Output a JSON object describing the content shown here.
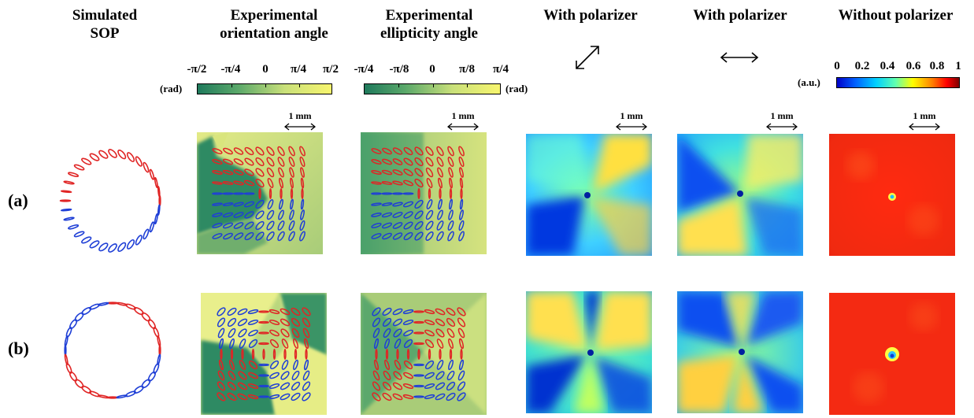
{
  "headers": {
    "col1": "Simulated\nSOP",
    "col2": "Experimental\norientation angle",
    "col3": "Experimental\nellipticity angle",
    "col4": "With polarizer",
    "col5": "With polarizer",
    "col6": "Without polarizer"
  },
  "row_labels": [
    "(a)",
    "(b)"
  ],
  "colorbars": {
    "orientation": {
      "ticks": [
        "-π/2",
        "-π/4",
        "0",
        "π/4",
        "π/2"
      ],
      "unit": "(rad)",
      "colors": [
        "#1f7a5c",
        "#c9e07a",
        "#f7f56e"
      ]
    },
    "ellipticity": {
      "ticks": [
        "-π/4",
        "-π/8",
        "0",
        "π/8",
        "π/4"
      ],
      "unit": "(rad)",
      "colors": [
        "#1f7a5c",
        "#c9e07a",
        "#f7f56e"
      ]
    },
    "intensity": {
      "ticks": [
        "0",
        "0.2",
        "0.4",
        "0.6",
        "0.8",
        "1"
      ],
      "unit": "(a.u.)",
      "colors": [
        "#0000ff",
        "#00ffff",
        "#ffff00",
        "#ff0000",
        "#800000"
      ]
    }
  },
  "scale_bar": "1 mm",
  "colors": {
    "right_handed": "#1f3fd6",
    "left_handed": "#e02525"
  }
}
